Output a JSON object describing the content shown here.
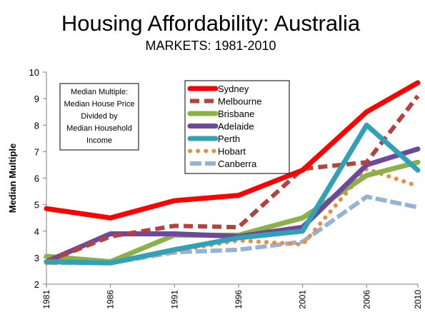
{
  "chart_data": {
    "type": "line",
    "title": "Housing Affordability: Australia",
    "subtitle": "MARKETS: 1981-2010",
    "xlabel": "",
    "ylabel": "Median Multiple",
    "x": [
      1981,
      1986,
      1991,
      1996,
      2001,
      2006,
      2010
    ],
    "ylim": [
      2,
      10
    ],
    "yticks": [
      2,
      3,
      4,
      5,
      6,
      7,
      8,
      9,
      10
    ],
    "grid": false,
    "legend_position": "top-center",
    "annotation": [
      "Median Multiple:",
      "Median House Price",
      "Divided by",
      "Median Household",
      "Income"
    ],
    "series": [
      {
        "name": "Sydney",
        "color": "#ff0000",
        "style": "solid",
        "values": [
          4.85,
          4.5,
          5.15,
          5.35,
          6.3,
          8.5,
          9.6
        ]
      },
      {
        "name": "Melbourne",
        "color": "#b5423e",
        "style": "dashed",
        "values": [
          2.85,
          3.8,
          4.2,
          4.15,
          6.35,
          6.6,
          9.1
        ]
      },
      {
        "name": "Brisbane",
        "color": "#8cb04a",
        "style": "solid",
        "values": [
          3.05,
          2.85,
          3.85,
          3.85,
          4.5,
          6.1,
          6.6
        ]
      },
      {
        "name": "Adelaide",
        "color": "#6b4a9b",
        "style": "solid",
        "values": [
          2.85,
          3.9,
          3.9,
          3.8,
          4.15,
          6.5,
          7.1
        ]
      },
      {
        "name": "Perth",
        "color": "#31a1b8",
        "style": "solid",
        "values": [
          2.85,
          2.8,
          3.3,
          3.75,
          4.0,
          8.0,
          6.3
        ]
      },
      {
        "name": "Hobart",
        "color": "#ef8b3d",
        "style": "dotted",
        "values": [
          2.8,
          2.8,
          3.25,
          3.65,
          3.5,
          6.35,
          5.7
        ]
      },
      {
        "name": "Canberra",
        "color": "#95b3d7",
        "style": "dashed",
        "values": [
          2.8,
          2.8,
          3.2,
          3.3,
          3.6,
          5.3,
          4.9
        ]
      }
    ]
  }
}
